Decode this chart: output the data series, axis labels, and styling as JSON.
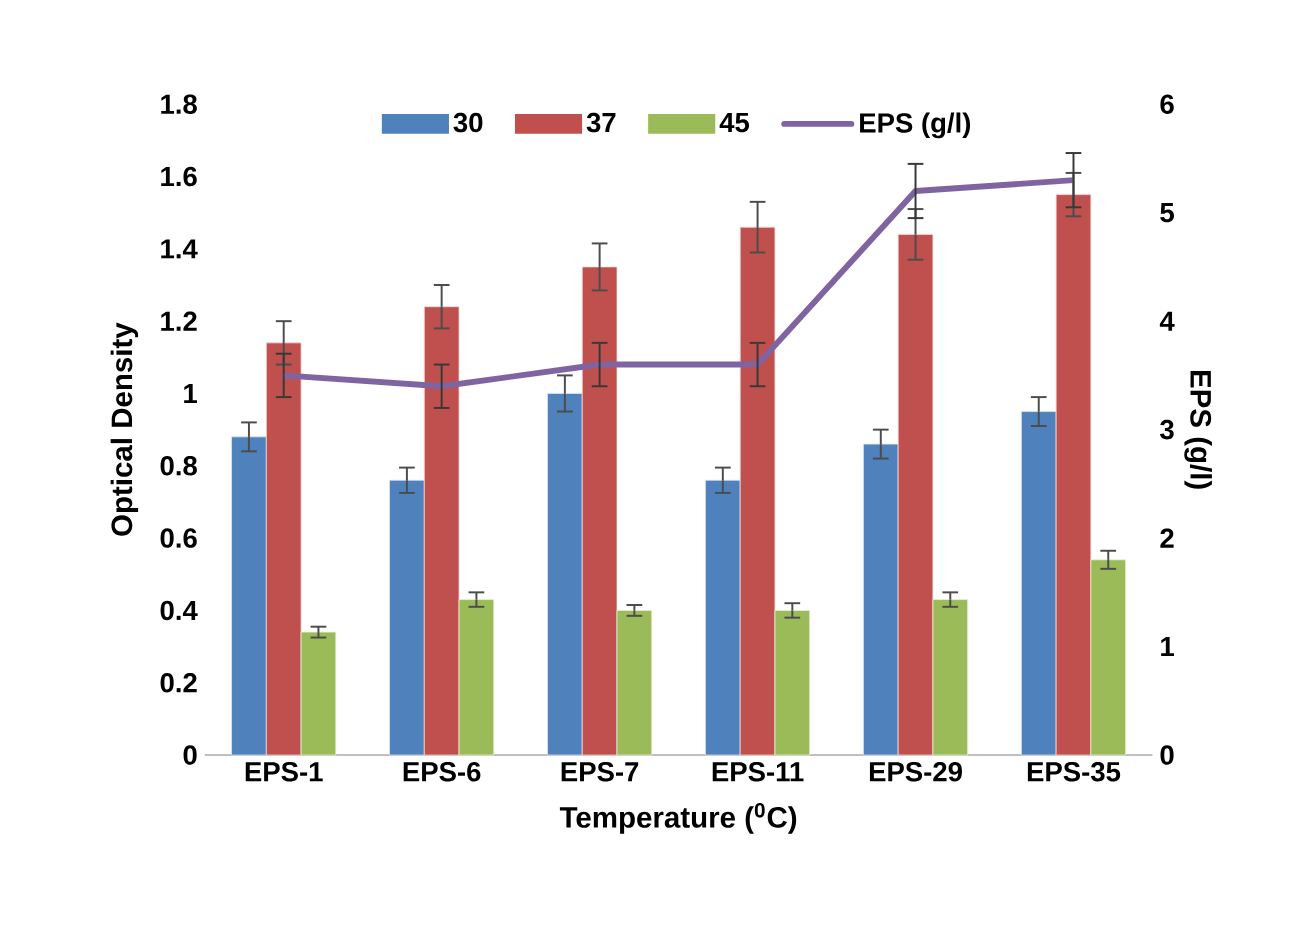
{
  "chart_data": {
    "type": "bar",
    "xlabel": "Temperature ($^{0}$C)",
    "ylabel": "Optical Density",
    "y2label": "EPS (g/l)",
    "categories": [
      "EPS-1",
      "EPS-6",
      "EPS-7",
      "EPS-11",
      "EPS-29",
      "EPS-35"
    ],
    "series": [
      {
        "name": "30",
        "color": "#4f81bd",
        "values": [
          0.88,
          0.76,
          1.0,
          0.76,
          0.86,
          0.95
        ],
        "errors": [
          0.04,
          0.035,
          0.05,
          0.035,
          0.04,
          0.04
        ]
      },
      {
        "name": "37",
        "color": "#c0504d",
        "values": [
          1.14,
          1.24,
          1.35,
          1.46,
          1.44,
          1.55
        ],
        "errors": [
          0.06,
          0.06,
          0.065,
          0.07,
          0.07,
          0.06
        ]
      },
      {
        "name": "45",
        "color": "#9bbb59",
        "values": [
          0.34,
          0.43,
          0.4,
          0.4,
          0.43,
          0.54
        ],
        "errors": [
          0.015,
          0.02,
          0.015,
          0.02,
          0.02,
          0.025
        ]
      },
      {
        "name": "EPS (g/l)",
        "type": "line",
        "axis": "y2",
        "color": "#8064a2",
        "values": [
          3.5,
          3.4,
          3.6,
          3.6,
          5.2,
          5.3
        ],
        "errors": [
          0.2,
          0.2,
          0.2,
          0.2,
          0.25,
          0.25
        ]
      }
    ],
    "ylim": [
      0,
      1.8
    ],
    "yticks": [
      0,
      0.2,
      0.4,
      0.6,
      0.8,
      1,
      1.2,
      1.4,
      1.6,
      1.8
    ],
    "y2lim": [
      0,
      6
    ],
    "y2ticks": [
      0,
      1,
      2,
      3,
      4,
      5,
      6
    ],
    "legend": "top",
    "grid": false,
    "marker": "none",
    "line_style": "solid"
  }
}
